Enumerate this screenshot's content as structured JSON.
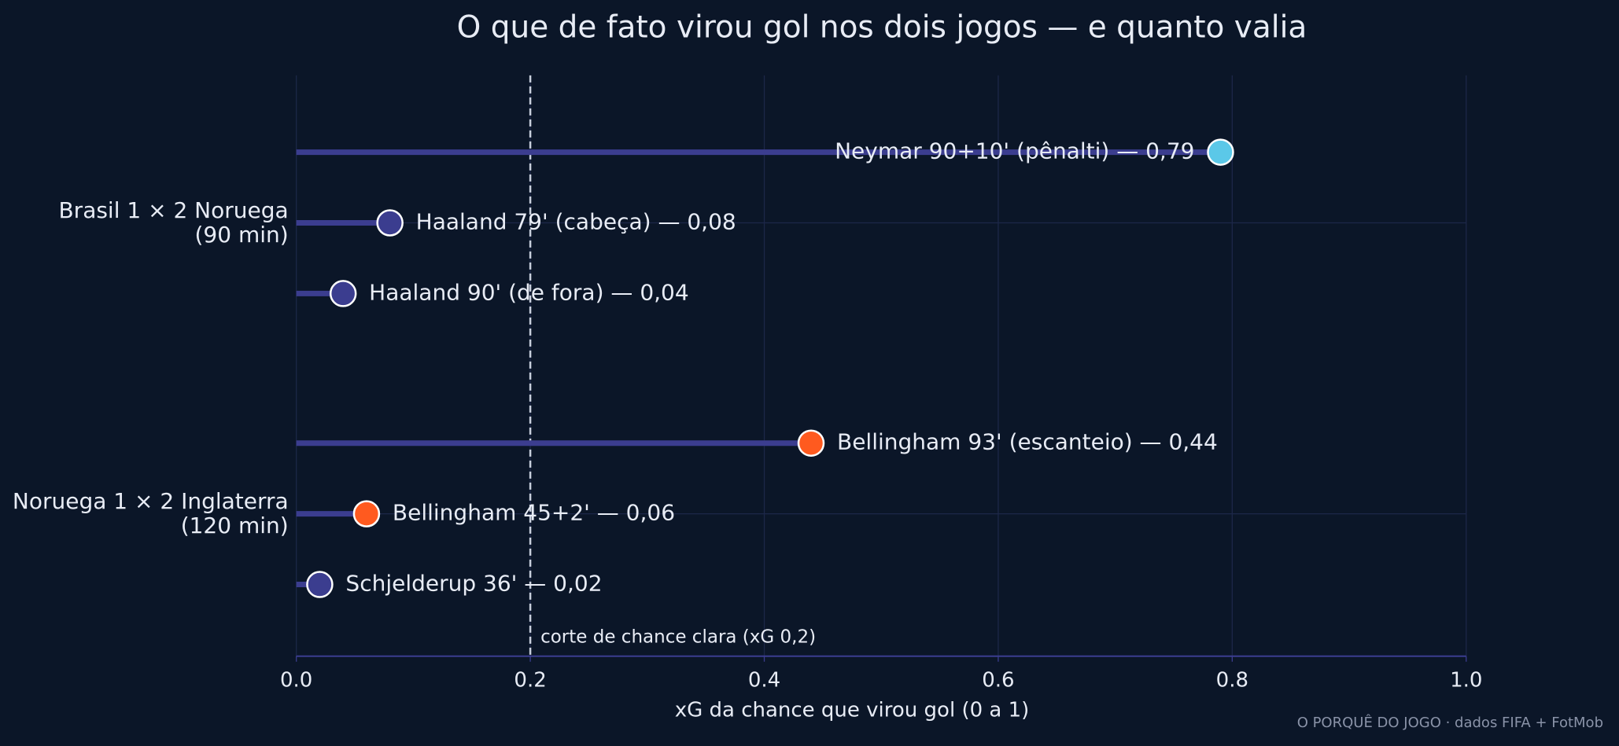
{
  "chart_data": {
    "type": "lollipop",
    "title": "O que de fato virou gol nos dois jogos — e quanto valia",
    "xlabel": "xG da chance que virou gol (0 a 1)",
    "xlim": [
      0,
      1
    ],
    "xticks": [
      {
        "value": 0,
        "label": "0.0"
      },
      {
        "value": 0.2,
        "label": "0.2"
      },
      {
        "value": 0.4,
        "label": "0.4"
      },
      {
        "value": 0.6,
        "label": "0.6"
      },
      {
        "value": 0.8,
        "label": "0.8"
      },
      {
        "value": 1,
        "label": "1.0"
      }
    ],
    "grid": true,
    "line_color": "#3b3d8f",
    "groups": [
      {
        "label_lines": [
          "Brasil 1 × 2 Noruega",
          "(90 min)"
        ],
        "values": [
          0.79,
          0.08,
          0.04
        ],
        "value_labels": [
          "Neymar 90+10' (pênalti) — 0,79",
          "Haaland 79' (cabeça) — 0,08",
          "Haaland 90' (de fora) — 0,04"
        ],
        "colors": [
          "#5bc8e8",
          "#3b3d8f",
          "#3b3d8f"
        ]
      },
      {
        "label_lines": [
          "Noruega 1 × 2 Inglaterra",
          "(120 min)"
        ],
        "values": [
          0.44,
          0.06,
          0.02
        ],
        "value_labels": [
          "Bellingham 93' (escanteio) — 0,44",
          "Bellingham 45+2' — 0,06",
          "Schjelderup 36' — 0,02"
        ],
        "colors": [
          "#ff5a1f",
          "#ff5a1f",
          "#3b3d8f"
        ]
      }
    ],
    "reference": {
      "value": 0.2,
      "label": "corte de chance clara (xG 0,2)"
    },
    "footer": "O PORQUÊ DO JOGO · dados FIFA + FotMob"
  }
}
